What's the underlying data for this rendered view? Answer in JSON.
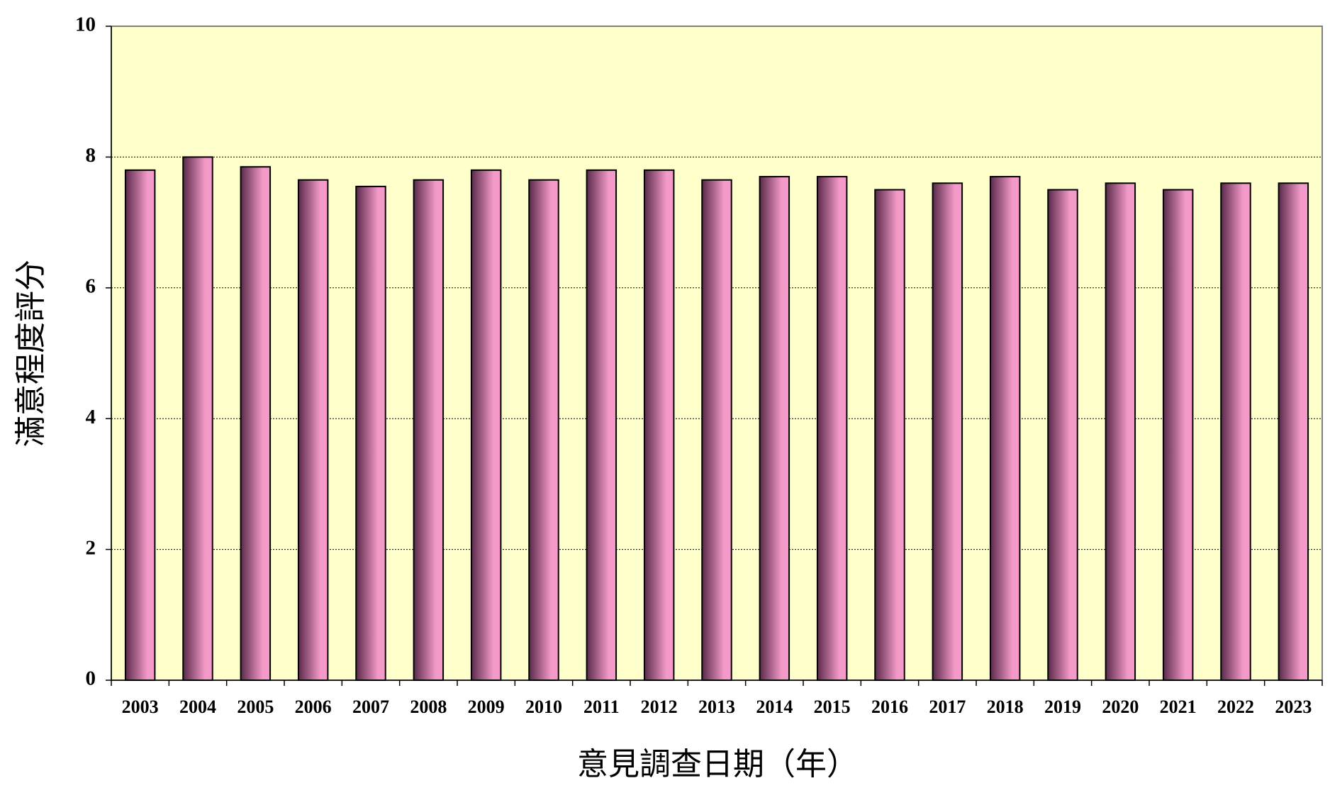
{
  "chart_data": {
    "type": "bar",
    "y_label": "滿意程度評分",
    "x_label": "意見調查日期（年）",
    "categories": [
      "2003",
      "2004",
      "2005",
      "2006",
      "2007",
      "2008",
      "2009",
      "2010",
      "2011",
      "2012",
      "2013",
      "2014",
      "2015",
      "2016",
      "2017",
      "2018",
      "2019",
      "2020",
      "2021",
      "2022",
      "2023"
    ],
    "values": [
      7.8,
      8.0,
      7.85,
      7.65,
      7.55,
      7.65,
      7.8,
      7.65,
      7.8,
      7.8,
      7.65,
      7.7,
      7.7,
      7.5,
      7.6,
      7.7,
      7.5,
      7.6,
      7.5,
      7.6,
      7.6
    ],
    "color": "#f49ac8",
    "ylim": [
      0,
      10
    ],
    "yticks": [
      0,
      2,
      4,
      6,
      8,
      10
    ],
    "grid": true
  }
}
